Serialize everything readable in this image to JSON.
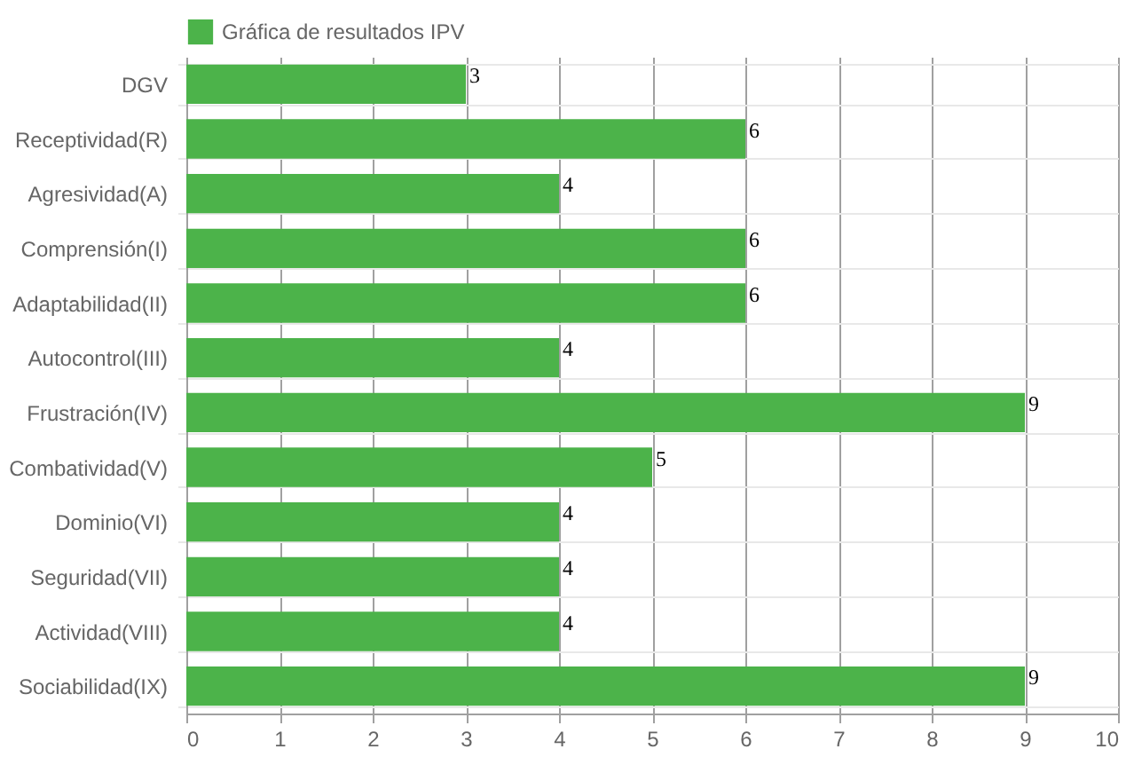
{
  "chart_data": {
    "type": "bar",
    "orientation": "horizontal",
    "categories": [
      "DGV",
      "Receptividad(R)",
      "Agresividad(A)",
      "Comprensión(I)",
      "Adaptabilidad(II)",
      "Autocontrol(III)",
      "Frustración(IV)",
      "Combatividad(V)",
      "Dominio(VI)",
      "Seguridad(VII)",
      "Actividad(VIII)",
      "Sociabilidad(IX)"
    ],
    "series": [
      {
        "name": "Gráfica de resultados IPV",
        "color": "#4cb34a",
        "values": [
          3,
          6,
          4,
          6,
          6,
          4,
          9,
          5,
          4,
          4,
          4,
          9
        ]
      }
    ],
    "xlim": [
      0,
      10
    ],
    "xticks": [
      0,
      1,
      2,
      3,
      4,
      5,
      6,
      7,
      8,
      9,
      10
    ],
    "grid": true,
    "legend": "top",
    "data_labels": true
  }
}
